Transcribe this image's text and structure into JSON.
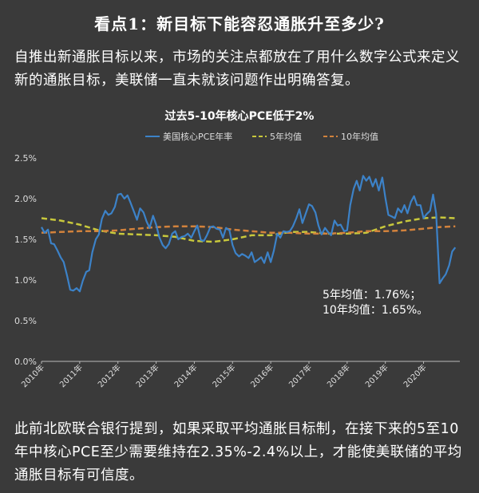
{
  "heading": "看点1：新目标下能容忍通胀升至多少?",
  "intro": "自推出新通胀目标以来，市场的关注点都放在了用什么数字公式来定义新的通胀目标，美联储一直未就该问题作出明确答复。",
  "footer": "此前北欧联合银行提到，如果采取平均通胀目标制，在接下来的5至10年中核心PCE至少需要维持在2.35%-2.4%以上，才能使美联储的平均通胀目标有可信度。",
  "colors": {
    "background": "#3a3a3a",
    "pce": "#3c82c8",
    "avg5": "#c8c83c",
    "avg10": "#d2823c"
  },
  "chart_data": {
    "type": "line",
    "title": "过去5-10年核心PCE低于2%",
    "legend_placement": "top",
    "grid": false,
    "ylim": [
      0,
      2.5
    ],
    "yticks": [
      "0.0%",
      "0.5%",
      "1.0%",
      "1.5%",
      "2.0%",
      "2.5%"
    ],
    "xticks": [
      "2010年",
      "2011年",
      "2012年",
      "2013年",
      "2014年",
      "2015年",
      "2016年",
      "2017年",
      "2018年",
      "2019年",
      "2020年"
    ],
    "xlim": [
      2010.0,
      2020.95
    ],
    "annotation_lines": [
      "5年均值：1.76%；",
      "10年均值：1.65%。"
    ],
    "series": [
      {
        "name": "美国核心PCE年率",
        "style": "solid",
        "color": "#3c82c8",
        "x": [
          2010.0,
          2010.08,
          2010.17,
          2010.25,
          2010.33,
          2010.42,
          2010.5,
          2010.58,
          2010.67,
          2010.75,
          2010.83,
          2010.92,
          2011.0,
          2011.08,
          2011.17,
          2011.25,
          2011.33,
          2011.42,
          2011.5,
          2011.58,
          2011.67,
          2011.75,
          2011.83,
          2011.92,
          2012.0,
          2012.08,
          2012.17,
          2012.25,
          2012.33,
          2012.42,
          2012.5,
          2012.58,
          2012.67,
          2012.75,
          2012.83,
          2012.92,
          2013.0,
          2013.08,
          2013.17,
          2013.25,
          2013.33,
          2013.42,
          2013.5,
          2013.58,
          2013.67,
          2013.75,
          2013.83,
          2013.92,
          2014.0,
          2014.08,
          2014.17,
          2014.25,
          2014.33,
          2014.42,
          2014.5,
          2014.58,
          2014.67,
          2014.75,
          2014.83,
          2014.92,
          2015.0,
          2015.08,
          2015.17,
          2015.25,
          2015.33,
          2015.42,
          2015.5,
          2015.58,
          2015.67,
          2015.75,
          2015.83,
          2015.92,
          2016.0,
          2016.08,
          2016.17,
          2016.25,
          2016.33,
          2016.42,
          2016.5,
          2016.58,
          2016.67,
          2016.75,
          2016.83,
          2016.92,
          2017.0,
          2017.08,
          2017.17,
          2017.25,
          2017.33,
          2017.42,
          2017.5,
          2017.58,
          2017.67,
          2017.75,
          2017.83,
          2017.92,
          2018.0,
          2018.08,
          2018.17,
          2018.25,
          2018.33,
          2018.42,
          2018.5,
          2018.58,
          2018.67,
          2018.75,
          2018.83,
          2018.92,
          2019.0,
          2019.08,
          2019.17,
          2019.25,
          2019.33,
          2019.42,
          2019.5,
          2019.58,
          2019.67,
          2019.75,
          2019.83,
          2019.92,
          2020.0,
          2020.08,
          2020.17,
          2020.25,
          2020.33,
          2020.42,
          2020.5,
          2020.58,
          2020.67,
          2020.75,
          2020.83
        ],
        "values": [
          1.65,
          1.58,
          1.62,
          1.45,
          1.44,
          1.36,
          1.28,
          1.22,
          1.05,
          0.88,
          0.87,
          0.9,
          0.86,
          0.99,
          1.1,
          1.12,
          1.34,
          1.5,
          1.56,
          1.75,
          1.85,
          1.8,
          1.82,
          1.9,
          2.05,
          2.06,
          2.0,
          2.04,
          1.95,
          1.84,
          1.74,
          1.88,
          1.83,
          1.72,
          1.64,
          1.79,
          1.68,
          1.53,
          1.43,
          1.39,
          1.44,
          1.57,
          1.6,
          1.5,
          1.53,
          1.54,
          1.57,
          1.52,
          1.6,
          1.67,
          1.49,
          1.48,
          1.55,
          1.65,
          1.66,
          1.63,
          1.62,
          1.52,
          1.64,
          1.61,
          1.43,
          1.33,
          1.29,
          1.32,
          1.3,
          1.27,
          1.34,
          1.22,
          1.25,
          1.28,
          1.21,
          1.34,
          1.22,
          1.36,
          1.57,
          1.52,
          1.6,
          1.59,
          1.6,
          1.66,
          1.76,
          1.87,
          1.7,
          1.82,
          1.93,
          1.91,
          1.83,
          1.67,
          1.56,
          1.64,
          1.59,
          1.55,
          1.73,
          1.67,
          1.68,
          1.6,
          1.61,
          1.92,
          2.12,
          2.22,
          2.1,
          2.28,
          2.22,
          2.27,
          2.15,
          2.24,
          2.1,
          2.26,
          2.01,
          1.8,
          1.78,
          1.76,
          1.88,
          1.83,
          1.92,
          1.82,
          1.96,
          2.03,
          1.92,
          1.92,
          1.76,
          1.81,
          1.85,
          2.05,
          1.82,
          0.96,
          1.02,
          1.07,
          1.18,
          1.35,
          1.4
        ]
      },
      {
        "name": "5年均值",
        "style": "dashed",
        "color": "#c8c83c",
        "x": [
          2010.0,
          2010.5,
          2011.0,
          2011.5,
          2012.0,
          2012.5,
          2013.0,
          2013.5,
          2014.0,
          2014.5,
          2015.0,
          2015.5,
          2016.0,
          2016.5,
          2017.0,
          2017.5,
          2018.0,
          2018.5,
          2019.0,
          2019.5,
          2020.0,
          2020.4,
          2020.83
        ],
        "values": [
          1.76,
          1.73,
          1.68,
          1.61,
          1.57,
          1.56,
          1.55,
          1.53,
          1.48,
          1.47,
          1.5,
          1.55,
          1.55,
          1.59,
          1.59,
          1.57,
          1.57,
          1.58,
          1.66,
          1.72,
          1.76,
          1.77,
          1.76
        ]
      },
      {
        "name": "10年均值",
        "style": "dashed",
        "color": "#d2823c",
        "x": [
          2010.0,
          2010.5,
          2011.0,
          2011.5,
          2012.0,
          2012.5,
          2013.0,
          2013.5,
          2014.0,
          2014.5,
          2015.0,
          2015.5,
          2016.0,
          2016.5,
          2017.0,
          2017.5,
          2018.0,
          2018.5,
          2019.0,
          2019.5,
          2020.0,
          2020.4,
          2020.83
        ],
        "values": [
          1.58,
          1.59,
          1.6,
          1.6,
          1.61,
          1.63,
          1.65,
          1.66,
          1.66,
          1.65,
          1.62,
          1.6,
          1.58,
          1.58,
          1.57,
          1.57,
          1.58,
          1.6,
          1.6,
          1.61,
          1.63,
          1.65,
          1.66
        ]
      }
    ]
  }
}
